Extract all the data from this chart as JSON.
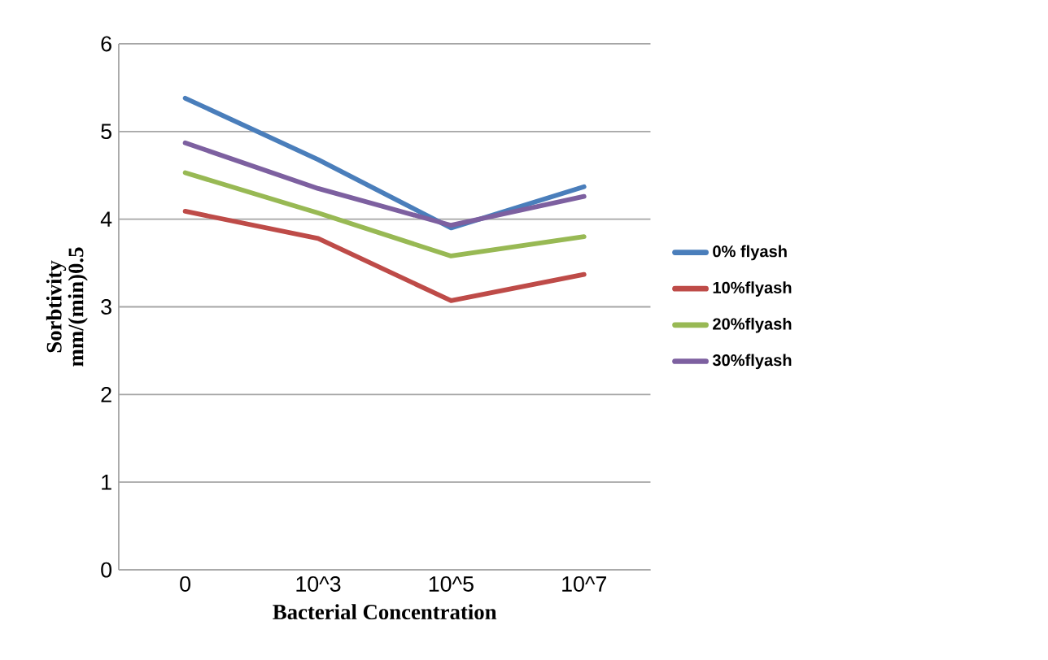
{
  "chart_data": {
    "type": "line",
    "xlabel": "Bacterial Concentration",
    "ylabel": "Sorbtivity mm/(min)0.5",
    "categories": [
      "0",
      "10^3",
      "10^5",
      "10^7"
    ],
    "series": [
      {
        "name": "0%  flyash",
        "color": "#4a7ebb",
        "values": [
          5.38,
          4.68,
          3.9,
          4.37
        ]
      },
      {
        "name": "10%flyash",
        "color": "#be4b48",
        "values": [
          4.09,
          3.78,
          3.07,
          3.37
        ]
      },
      {
        "name": "20%flyash",
        "color": "#98b954",
        "values": [
          4.53,
          4.07,
          3.58,
          3.8
        ]
      },
      {
        "name": "30%flyash",
        "color": "#7d60a0",
        "values": [
          4.87,
          4.35,
          3.93,
          4.26
        ]
      }
    ],
    "ylim": [
      0,
      6
    ],
    "yticks": [
      0,
      1,
      2,
      3,
      4,
      5,
      6
    ],
    "grid": "y",
    "legend": "right",
    "marker": "none",
    "line_style": "solid"
  }
}
